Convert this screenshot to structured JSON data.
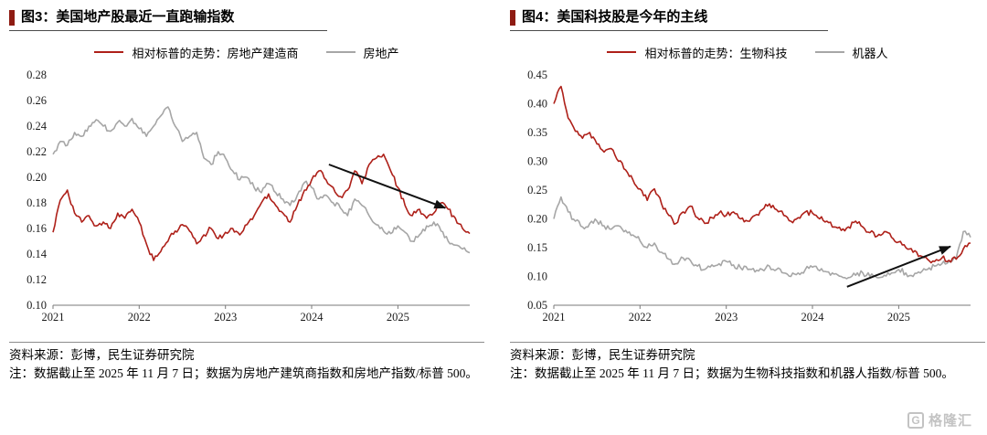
{
  "colors": {
    "accent_bar": "#8e1b12",
    "line_red": "#ae2019",
    "line_gray": "#a6a6a6"
  },
  "watermark": {
    "icon_letter": "G",
    "text": "格隆汇"
  },
  "panels": [
    {
      "title": "图3：美国地产股最近一直跑输指数",
      "legend": [
        {
          "label": "相对标普的走势：房地产建造商"
        },
        {
          "label": "房地产"
        }
      ],
      "source": "资料来源：彭博，民生证券研究院",
      "note": "注：数据截止至 2025 年 11 月 7 日；数据为房地产建筑商指数和房地产指数/标普 500。",
      "chart_data": {
        "type": "line",
        "x_start_year": 2021,
        "points_per_year": 12,
        "x_ticks": [
          "2021",
          "2022",
          "2023",
          "2024",
          "2025"
        ],
        "y_ticks": [
          "0.28",
          "0.26",
          "0.24",
          "0.22",
          "0.20",
          "0.18",
          "0.16",
          "0.14",
          "0.12",
          "0.10"
        ],
        "ylim": [
          0.1,
          0.28
        ],
        "grid": false,
        "legend_position": "top",
        "series": [
          {
            "name": "相对标普的走势：房地产建造商",
            "color": "#ae2019",
            "values": [
              0.157,
              0.182,
              0.19,
              0.172,
              0.165,
              0.17,
              0.162,
              0.165,
              0.16,
              0.172,
              0.168,
              0.175,
              0.165,
              0.148,
              0.135,
              0.142,
              0.15,
              0.158,
              0.163,
              0.158,
              0.148,
              0.155,
              0.16,
              0.152,
              0.157,
              0.16,
              0.155,
              0.163,
              0.17,
              0.18,
              0.187,
              0.178,
              0.172,
              0.165,
              0.178,
              0.19,
              0.198,
              0.205,
              0.198,
              0.192,
              0.185,
              0.19,
              0.205,
              0.195,
              0.21,
              0.215,
              0.218,
              0.205,
              0.192,
              0.178,
              0.17,
              0.175,
              0.168,
              0.172,
              0.18,
              0.175,
              0.168,
              0.16,
              0.156
            ]
          },
          {
            "name": "房地产",
            "color": "#a6a6a6",
            "values": [
              0.218,
              0.228,
              0.225,
              0.235,
              0.232,
              0.24,
              0.245,
              0.24,
              0.236,
              0.243,
              0.24,
              0.246,
              0.238,
              0.232,
              0.24,
              0.248,
              0.255,
              0.24,
              0.228,
              0.232,
              0.235,
              0.215,
              0.21,
              0.22,
              0.215,
              0.205,
              0.198,
              0.2,
              0.192,
              0.188,
              0.195,
              0.188,
              0.183,
              0.178,
              0.186,
              0.196,
              0.192,
              0.183,
              0.186,
              0.18,
              0.176,
              0.17,
              0.183,
              0.178,
              0.17,
              0.163,
              0.158,
              0.156,
              0.162,
              0.157,
              0.15,
              0.155,
              0.162,
              0.165,
              0.158,
              0.15,
              0.147,
              0.144,
              0.141
            ]
          }
        ],
        "arrow": {
          "from_year": 2024.2,
          "from_value": 0.21,
          "to_year": 2025.55,
          "to_value": 0.176
        }
      }
    },
    {
      "title": "图4：美国科技股是今年的主线",
      "legend": [
        {
          "label": "相对标普的走势：生物科技"
        },
        {
          "label": "机器人"
        }
      ],
      "source": "资料来源：彭博，民生证券研究院",
      "note": "注：数据截止至 2025 年 11 月 7 日；数据为生物科技指数和机器人指数/标普 500。",
      "chart_data": {
        "type": "line",
        "x_start_year": 2021,
        "points_per_year": 12,
        "x_ticks": [
          "2021",
          "2022",
          "2023",
          "2024",
          "2025"
        ],
        "y_ticks": [
          "0.45",
          "0.40",
          "0.35",
          "0.30",
          "0.25",
          "0.20",
          "0.15",
          "0.10",
          "0.05"
        ],
        "ylim": [
          0.05,
          0.45
        ],
        "grid": false,
        "legend_position": "top",
        "series": [
          {
            "name": "相对标普的走势：生物科技",
            "color": "#ae2019",
            "values": [
              0.4,
              0.43,
              0.375,
              0.352,
              0.34,
              0.35,
              0.33,
              0.316,
              0.322,
              0.3,
              0.285,
              0.268,
              0.252,
              0.232,
              0.252,
              0.226,
              0.206,
              0.192,
              0.212,
              0.222,
              0.202,
              0.192,
              0.202,
              0.21,
              0.206,
              0.212,
              0.2,
              0.196,
              0.206,
              0.216,
              0.226,
              0.216,
              0.206,
              0.196,
              0.202,
              0.212,
              0.21,
              0.2,
              0.196,
              0.186,
              0.18,
              0.186,
              0.196,
              0.186,
              0.176,
              0.17,
              0.178,
              0.168,
              0.16,
              0.15,
              0.142,
              0.136,
              0.13,
              0.126,
              0.132,
              0.128,
              0.13,
              0.148,
              0.158
            ]
          },
          {
            "name": "机器人",
            "color": "#a6a6a6",
            "values": [
              0.2,
              0.238,
              0.212,
              0.196,
              0.186,
              0.192,
              0.196,
              0.188,
              0.182,
              0.188,
              0.18,
              0.172,
              0.162,
              0.15,
              0.158,
              0.142,
              0.13,
              0.122,
              0.132,
              0.128,
              0.118,
              0.112,
              0.12,
              0.122,
              0.126,
              0.12,
              0.115,
              0.112,
              0.108,
              0.112,
              0.118,
              0.112,
              0.106,
              0.1,
              0.106,
              0.112,
              0.116,
              0.11,
              0.108,
              0.104,
              0.1,
              0.098,
              0.102,
              0.106,
              0.1,
              0.098,
              0.102,
              0.106,
              0.112,
              0.106,
              0.1,
              0.106,
              0.112,
              0.118,
              0.122,
              0.126,
              0.132,
              0.178,
              0.168
            ]
          }
        ],
        "arrow": {
          "from_year": 2024.4,
          "from_value": 0.082,
          "to_year": 2025.6,
          "to_value": 0.152
        }
      }
    }
  ]
}
